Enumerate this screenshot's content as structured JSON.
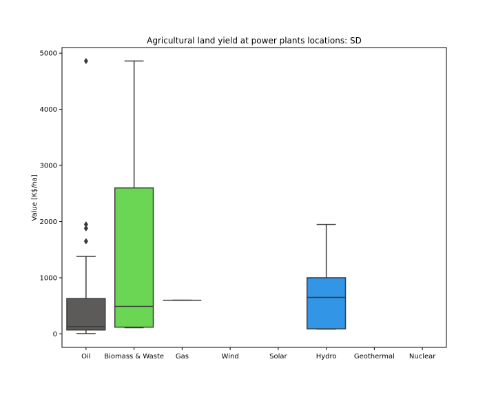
{
  "chart_data": {
    "type": "box",
    "title": "Agricultural land yield at power plants locations: SD",
    "xlabel": "",
    "ylabel": "Value [K$/ha]",
    "ylim": [
      -240,
      5100
    ],
    "yticks": [
      0,
      1000,
      2000,
      3000,
      4000,
      5000
    ],
    "grid": false,
    "categories": [
      "Oil",
      "Biomass & Waste",
      "Gas",
      "Wind",
      "Solar",
      "Hydro",
      "Geothermal",
      "Nuclear"
    ],
    "series": [
      {
        "name": "Oil",
        "color": "#5d5b59",
        "whisker_low": 5,
        "q1": 70,
        "median": 130,
        "q3": 630,
        "whisker_high": 1380,
        "outliers": [
          1650,
          1880,
          1950,
          4860
        ]
      },
      {
        "name": "Biomass & Waste",
        "color": "#6ad654",
        "whisker_low": 110,
        "q1": 120,
        "median": 490,
        "q3": 2600,
        "whisker_high": 4860,
        "outliers": []
      },
      {
        "name": "Gas",
        "color": "#ffa500",
        "whisker_low": 600,
        "q1": 600,
        "median": 600,
        "q3": 600,
        "whisker_high": 600,
        "outliers": []
      },
      {
        "name": "Wind",
        "color": null
      },
      {
        "name": "Solar",
        "color": null
      },
      {
        "name": "Hydro",
        "color": "#3395e5",
        "whisker_low": 85,
        "q1": 90,
        "median": 650,
        "q3": 1000,
        "whisker_high": 1950,
        "outliers": []
      },
      {
        "name": "Geothermal",
        "color": null
      },
      {
        "name": "Nuclear",
        "color": null
      }
    ]
  }
}
